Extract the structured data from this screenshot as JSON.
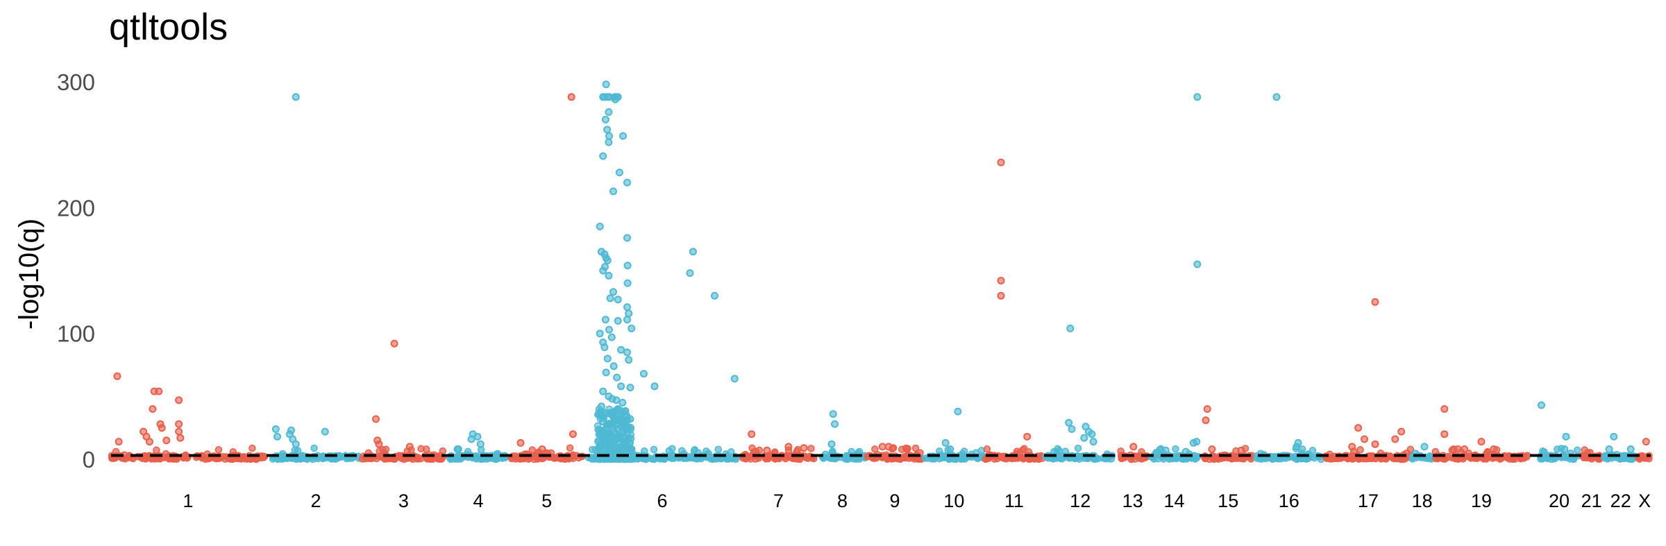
{
  "chart_data": {
    "type": "scatter",
    "title": "qtltools",
    "xlabel": "",
    "ylabel": "-log10(q)",
    "ylim": [
      0,
      300
    ],
    "yticks": [
      "0",
      "100",
      "200",
      "300"
    ],
    "threshold": 3,
    "grid": false,
    "legend": "none",
    "colors": {
      "odd_chromosome": "#e8604c",
      "even_chromosome": "#4fb9d3",
      "threshold_line": "#000000"
    },
    "chromosomes": [
      {
        "label": "1",
        "start": 0.0,
        "end": 0.1
      },
      {
        "label": "2",
        "start": 0.105,
        "end": 0.161
      },
      {
        "label": "3",
        "start": 0.163,
        "end": 0.217
      },
      {
        "label": "4",
        "start": 0.22,
        "end": 0.257
      },
      {
        "label": "5",
        "start": 0.26,
        "end": 0.306
      },
      {
        "label": "6",
        "start": 0.31,
        "end": 0.406
      },
      {
        "label": "7",
        "start": 0.41,
        "end": 0.457
      },
      {
        "label": "8",
        "start": 0.46,
        "end": 0.49
      },
      {
        "label": "9",
        "start": 0.491,
        "end": 0.527
      },
      {
        "label": "10",
        "start": 0.528,
        "end": 0.567
      },
      {
        "label": "11",
        "start": 0.568,
        "end": 0.605
      },
      {
        "label": "12",
        "start": 0.607,
        "end": 0.652
      },
      {
        "label": "13",
        "start": 0.654,
        "end": 0.673
      },
      {
        "label": "14",
        "start": 0.675,
        "end": 0.706
      },
      {
        "label": "15",
        "start": 0.709,
        "end": 0.742
      },
      {
        "label": "16",
        "start": 0.744,
        "end": 0.786
      },
      {
        "label": "17",
        "start": 0.789,
        "end": 0.844
      },
      {
        "label": "18",
        "start": 0.845,
        "end": 0.858
      },
      {
        "label": "19",
        "start": 0.86,
        "end": 0.92
      },
      {
        "label": "20",
        "start": 0.928,
        "end": 0.953
      },
      {
        "label": "21",
        "start": 0.955,
        "end": 0.968
      },
      {
        "label": "22",
        "start": 0.97,
        "end": 0.991
      },
      {
        "label": "X",
        "start": 0.992,
        "end": 1.0
      }
    ],
    "notable_points": [
      {
        "chrom": "1",
        "x": 0.004,
        "y": 66
      },
      {
        "chrom": "1",
        "x": 0.005,
        "y": 14
      },
      {
        "chrom": "1",
        "x": 0.021,
        "y": 22
      },
      {
        "chrom": "1",
        "x": 0.023,
        "y": 18
      },
      {
        "chrom": "1",
        "x": 0.025,
        "y": 14
      },
      {
        "chrom": "1",
        "x": 0.027,
        "y": 40
      },
      {
        "chrom": "1",
        "x": 0.028,
        "y": 54
      },
      {
        "chrom": "1",
        "x": 0.031,
        "y": 54
      },
      {
        "chrom": "1",
        "x": 0.032,
        "y": 28
      },
      {
        "chrom": "1",
        "x": 0.033,
        "y": 25
      },
      {
        "chrom": "1",
        "x": 0.036,
        "y": 15
      },
      {
        "chrom": "1",
        "x": 0.044,
        "y": 47
      },
      {
        "chrom": "1",
        "x": 0.044,
        "y": 28
      },
      {
        "chrom": "1",
        "x": 0.044,
        "y": 22
      },
      {
        "chrom": "1",
        "x": 0.045,
        "y": 17
      },
      {
        "chrom": "2",
        "x": 0.12,
        "y": 288
      },
      {
        "chrom": "2",
        "x": 0.107,
        "y": 24
      },
      {
        "chrom": "2",
        "x": 0.108,
        "y": 18
      },
      {
        "chrom": "2",
        "x": 0.116,
        "y": 20
      },
      {
        "chrom": "2",
        "x": 0.117,
        "y": 23
      },
      {
        "chrom": "2",
        "x": 0.118,
        "y": 16
      },
      {
        "chrom": "2",
        "x": 0.12,
        "y": 12
      },
      {
        "chrom": "2",
        "x": 0.139,
        "y": 22
      },
      {
        "chrom": "3",
        "x": 0.172,
        "y": 32
      },
      {
        "chrom": "3",
        "x": 0.174,
        "y": 12
      },
      {
        "chrom": "3",
        "x": 0.173,
        "y": 15
      },
      {
        "chrom": "3",
        "x": 0.184,
        "y": 92
      },
      {
        "chrom": "3",
        "x": 0.194,
        "y": 10
      },
      {
        "chrom": "4",
        "x": 0.225,
        "y": 8
      },
      {
        "chrom": "4",
        "x": 0.234,
        "y": 16
      },
      {
        "chrom": "4",
        "x": 0.235,
        "y": 20
      },
      {
        "chrom": "4",
        "x": 0.238,
        "y": 18
      },
      {
        "chrom": "4",
        "x": 0.24,
        "y": 12
      },
      {
        "chrom": "5",
        "x": 0.266,
        "y": 13
      },
      {
        "chrom": "5",
        "x": 0.28,
        "y": 8
      },
      {
        "chrom": "5",
        "x": 0.299,
        "y": 288
      },
      {
        "chrom": "5",
        "x": 0.3,
        "y": 20
      },
      {
        "chrom": "6",
        "x": 0.322,
        "y": 23
      },
      {
        "chrom": "6",
        "x": 0.323,
        "y": 16
      },
      {
        "chrom": "6",
        "x": 0.338,
        "y": 104
      },
      {
        "chrom": "6",
        "x": 0.346,
        "y": 68
      },
      {
        "chrom": "6",
        "x": 0.353,
        "y": 58
      },
      {
        "chrom": "6",
        "x": 0.405,
        "y": 64
      },
      {
        "chrom": "6",
        "x": 0.392,
        "y": 130
      },
      {
        "chrom": "6",
        "x": 0.378,
        "y": 165
      },
      {
        "chrom": "6",
        "x": 0.376,
        "y": 148
      },
      {
        "chrom": "7",
        "x": 0.416,
        "y": 20
      },
      {
        "chrom": "7",
        "x": 0.426,
        "y": 7
      },
      {
        "chrom": "7",
        "x": 0.44,
        "y": 10
      },
      {
        "chrom": "7",
        "x": 0.45,
        "y": 9
      },
      {
        "chrom": "8",
        "x": 0.469,
        "y": 36
      },
      {
        "chrom": "8",
        "x": 0.47,
        "y": 28
      },
      {
        "chrom": "8",
        "x": 0.468,
        "y": 12
      },
      {
        "chrom": "9",
        "x": 0.501,
        "y": 10
      },
      {
        "chrom": "9",
        "x": 0.505,
        "y": 10
      },
      {
        "chrom": "9",
        "x": 0.508,
        "y": 9
      },
      {
        "chrom": "9",
        "x": 0.517,
        "y": 8
      },
      {
        "chrom": "10",
        "x": 0.55,
        "y": 38
      },
      {
        "chrom": "10",
        "x": 0.542,
        "y": 13
      },
      {
        "chrom": "10",
        "x": 0.545,
        "y": 8
      },
      {
        "chrom": "11",
        "x": 0.578,
        "y": 236
      },
      {
        "chrom": "11",
        "x": 0.578,
        "y": 142
      },
      {
        "chrom": "11",
        "x": 0.578,
        "y": 130
      },
      {
        "chrom": "11",
        "x": 0.595,
        "y": 18
      },
      {
        "chrom": "11",
        "x": 0.59,
        "y": 5
      },
      {
        "chrom": "12",
        "x": 0.623,
        "y": 104
      },
      {
        "chrom": "12",
        "x": 0.622,
        "y": 29
      },
      {
        "chrom": "12",
        "x": 0.624,
        "y": 24
      },
      {
        "chrom": "12",
        "x": 0.633,
        "y": 26
      },
      {
        "chrom": "12",
        "x": 0.635,
        "y": 22
      },
      {
        "chrom": "12",
        "x": 0.637,
        "y": 20
      },
      {
        "chrom": "12",
        "x": 0.638,
        "y": 14
      },
      {
        "chrom": "12",
        "x": 0.632,
        "y": 17
      },
      {
        "chrom": "13",
        "x": 0.664,
        "y": 10
      },
      {
        "chrom": "14",
        "x": 0.685,
        "y": 7
      },
      {
        "chrom": "14",
        "x": 0.698,
        "y": 6
      },
      {
        "chrom": "14",
        "x": 0.7055,
        "y": 288
      },
      {
        "chrom": "14",
        "x": 0.7055,
        "y": 155
      },
      {
        "chrom": "14",
        "x": 0.703,
        "y": 13
      },
      {
        "chrom": "14",
        "x": 0.705,
        "y": 14
      },
      {
        "chrom": "15",
        "x": 0.712,
        "y": 40
      },
      {
        "chrom": "15",
        "x": 0.711,
        "y": 31
      },
      {
        "chrom": "15",
        "x": 0.715,
        "y": 8
      },
      {
        "chrom": "15",
        "x": 0.734,
        "y": 7
      },
      {
        "chrom": "16",
        "x": 0.757,
        "y": 288
      },
      {
        "chrom": "16",
        "x": 0.771,
        "y": 13
      },
      {
        "chrom": "16",
        "x": 0.77,
        "y": 10
      },
      {
        "chrom": "17",
        "x": 0.81,
        "y": 25
      },
      {
        "chrom": "17",
        "x": 0.821,
        "y": 125
      },
      {
        "chrom": "17",
        "x": 0.806,
        "y": 10
      },
      {
        "chrom": "17",
        "x": 0.814,
        "y": 16
      },
      {
        "chrom": "17",
        "x": 0.821,
        "y": 12
      },
      {
        "chrom": "17",
        "x": 0.834,
        "y": 16
      },
      {
        "chrom": "17",
        "x": 0.838,
        "y": 22
      },
      {
        "chrom": "18",
        "x": 0.853,
        "y": 10
      },
      {
        "chrom": "19",
        "x": 0.866,
        "y": 40
      },
      {
        "chrom": "19",
        "x": 0.866,
        "y": 20
      },
      {
        "chrom": "19",
        "x": 0.872,
        "y": 8
      },
      {
        "chrom": "19",
        "x": 0.879,
        "y": 8
      },
      {
        "chrom": "19",
        "x": 0.89,
        "y": 14
      },
      {
        "chrom": "19",
        "x": 0.898,
        "y": 8
      },
      {
        "chrom": "20",
        "x": 0.929,
        "y": 43
      },
      {
        "chrom": "20",
        "x": 0.945,
        "y": 18
      },
      {
        "chrom": "20",
        "x": 0.944,
        "y": 8
      },
      {
        "chrom": "21",
        "x": 0.959,
        "y": 5
      },
      {
        "chrom": "22",
        "x": 0.976,
        "y": 18
      },
      {
        "chrom": "22",
        "x": 0.973,
        "y": 8
      },
      {
        "chrom": "22",
        "x": 0.987,
        "y": 8
      },
      {
        "chrom": "X",
        "x": 0.997,
        "y": 14
      }
    ],
    "chr6_cluster": {
      "label": "6",
      "points": [
        {
          "x": 0.3215,
          "y": 298
        },
        {
          "x": 0.3205,
          "y": 288
        },
        {
          "x": 0.3225,
          "y": 288
        },
        {
          "x": 0.3195,
          "y": 288
        },
        {
          "x": 0.3235,
          "y": 288
        },
        {
          "x": 0.3272,
          "y": 288
        },
        {
          "x": 0.3282,
          "y": 288
        },
        {
          "x": 0.3292,
          "y": 288
        },
        {
          "x": 0.3275,
          "y": 286
        },
        {
          "x": 0.3232,
          "y": 276
        },
        {
          "x": 0.3212,
          "y": 270
        },
        {
          "x": 0.3222,
          "y": 262
        },
        {
          "x": 0.3235,
          "y": 257
        },
        {
          "x": 0.3232,
          "y": 252
        },
        {
          "x": 0.3195,
          "y": 241
        },
        {
          "x": 0.3325,
          "y": 257
        },
        {
          "x": 0.3302,
          "y": 228
        },
        {
          "x": 0.3262,
          "y": 213
        },
        {
          "x": 0.3352,
          "y": 220
        },
        {
          "x": 0.3175,
          "y": 185
        },
        {
          "x": 0.3352,
          "y": 176
        },
        {
          "x": 0.3185,
          "y": 165
        },
        {
          "x": 0.3205,
          "y": 163
        },
        {
          "x": 0.3215,
          "y": 160
        },
        {
          "x": 0.3225,
          "y": 158
        },
        {
          "x": 0.3208,
          "y": 153
        },
        {
          "x": 0.3195,
          "y": 150
        },
        {
          "x": 0.3232,
          "y": 146
        },
        {
          "x": 0.3355,
          "y": 154
        },
        {
          "x": 0.3355,
          "y": 140
        },
        {
          "x": 0.3262,
          "y": 133
        },
        {
          "x": 0.3242,
          "y": 128
        },
        {
          "x": 0.3292,
          "y": 127
        },
        {
          "x": 0.3352,
          "y": 121
        },
        {
          "x": 0.3362,
          "y": 116
        },
        {
          "x": 0.3352,
          "y": 111
        },
        {
          "x": 0.3292,
          "y": 110
        },
        {
          "x": 0.3212,
          "y": 111
        },
        {
          "x": 0.3235,
          "y": 103
        },
        {
          "x": 0.3175,
          "y": 100
        },
        {
          "x": 0.3252,
          "y": 97
        },
        {
          "x": 0.3195,
          "y": 93
        },
        {
          "x": 0.3205,
          "y": 89
        },
        {
          "x": 0.3312,
          "y": 87
        },
        {
          "x": 0.3352,
          "y": 85
        },
        {
          "x": 0.3362,
          "y": 79
        },
        {
          "x": 0.3225,
          "y": 80
        },
        {
          "x": 0.3265,
          "y": 74
        },
        {
          "x": 0.3215,
          "y": 69
        },
        {
          "x": 0.3285,
          "y": 65
        },
        {
          "x": 0.3312,
          "y": 58
        },
        {
          "x": 0.3372,
          "y": 57
        },
        {
          "x": 0.3195,
          "y": 54
        },
        {
          "x": 0.3232,
          "y": 50
        },
        {
          "x": 0.3255,
          "y": 48
        },
        {
          "x": 0.3282,
          "y": 47
        },
        {
          "x": 0.3322,
          "y": 45
        },
        {
          "x": 0.3185,
          "y": 42
        },
        {
          "x": 0.3292,
          "y": 40
        },
        {
          "x": 0.3205,
          "y": 37
        },
        {
          "x": 0.3255,
          "y": 35
        },
        {
          "x": 0.3342,
          "y": 34
        },
        {
          "x": 0.3372,
          "y": 32
        },
        {
          "x": 0.3195,
          "y": 30
        },
        {
          "x": 0.3232,
          "y": 28
        },
        {
          "x": 0.3312,
          "y": 26
        },
        {
          "x": 0.3262,
          "y": 24
        },
        {
          "x": 0.3182,
          "y": 22
        },
        {
          "x": 0.3352,
          "y": 21
        },
        {
          "x": 0.3222,
          "y": 19
        },
        {
          "x": 0.3302,
          "y": 17
        },
        {
          "x": 0.3272,
          "y": 15
        },
        {
          "x": 0.3182,
          "y": 13
        },
        {
          "x": 0.3342,
          "y": 12
        },
        {
          "x": 0.3232,
          "y": 10
        },
        {
          "x": 0.3372,
          "y": 9
        },
        {
          "x": 0.3212,
          "y": 8
        }
      ],
      "dense_region": {
        "x_from": 0.316,
        "x_to": 0.338,
        "y_max": 40
      }
    }
  }
}
